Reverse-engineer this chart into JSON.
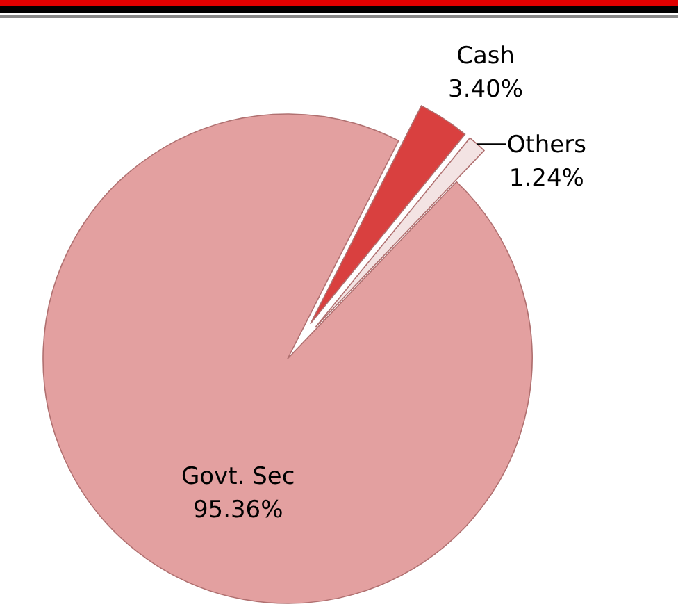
{
  "chart_data": {
    "type": "pie",
    "categories": [
      "Cash",
      "Others",
      "Govt. Sec"
    ],
    "values": [
      3.4,
      1.24,
      95.36
    ],
    "value_labels": [
      "3.40%",
      "1.24%",
      "95.36%"
    ],
    "colors": [
      "#d9403f",
      "#f3e3e3",
      "#e3a0a0"
    ]
  }
}
